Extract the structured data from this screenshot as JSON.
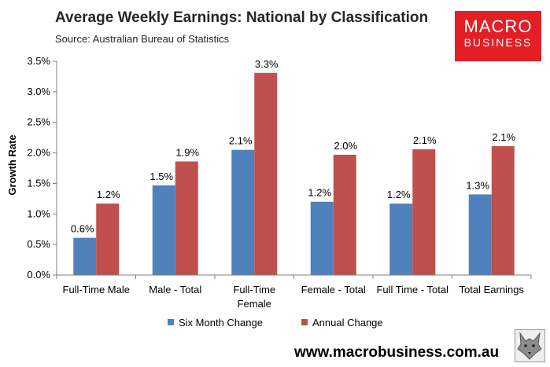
{
  "header": {
    "title": "Average Weekly Earnings: National by Classification",
    "subtitle": "Source: Australian Bureau of Statistics"
  },
  "logo": {
    "line1": "MACRO",
    "line2": "BUSINESS"
  },
  "footer": {
    "url": "www.macrobusiness.com.au"
  },
  "colors": {
    "series1": "#4f81bd",
    "series2": "#c0504d",
    "logo_bg": "#e31e24"
  },
  "chart_data": {
    "type": "bar",
    "title": "Average Weekly Earnings: National by Classification",
    "ylabel": "Growth Rate",
    "xlabel": "",
    "ylim": [
      0,
      3.5
    ],
    "ytick_step": 0.5,
    "ytick_labels": [
      "0.0%",
      "0.5%",
      "1.0%",
      "1.5%",
      "2.0%",
      "2.5%",
      "3.0%",
      "3.5%"
    ],
    "categories": [
      [
        "Full-Time Male"
      ],
      [
        "Male - Total"
      ],
      [
        "Full-Time",
        "Female"
      ],
      [
        "Female - Total"
      ],
      [
        "Full Time - Total"
      ],
      [
        "Total Earnings"
      ]
    ],
    "legend_position": "bottom",
    "series": [
      {
        "name": "Six Month Change",
        "color": "#4f81bd",
        "values": [
          0.61,
          1.47,
          2.05,
          1.2,
          1.17,
          1.32
        ],
        "labels": [
          "0.6%",
          "1.5%",
          "2.1%",
          "1.2%",
          "1.2%",
          "1.3%"
        ]
      },
      {
        "name": "Annual Change",
        "color": "#c0504d",
        "values": [
          1.17,
          1.86,
          3.31,
          1.97,
          2.06,
          2.11
        ],
        "labels": [
          "1.2%",
          "1.9%",
          "3.3%",
          "2.0%",
          "2.1%",
          "2.1%"
        ]
      }
    ]
  }
}
